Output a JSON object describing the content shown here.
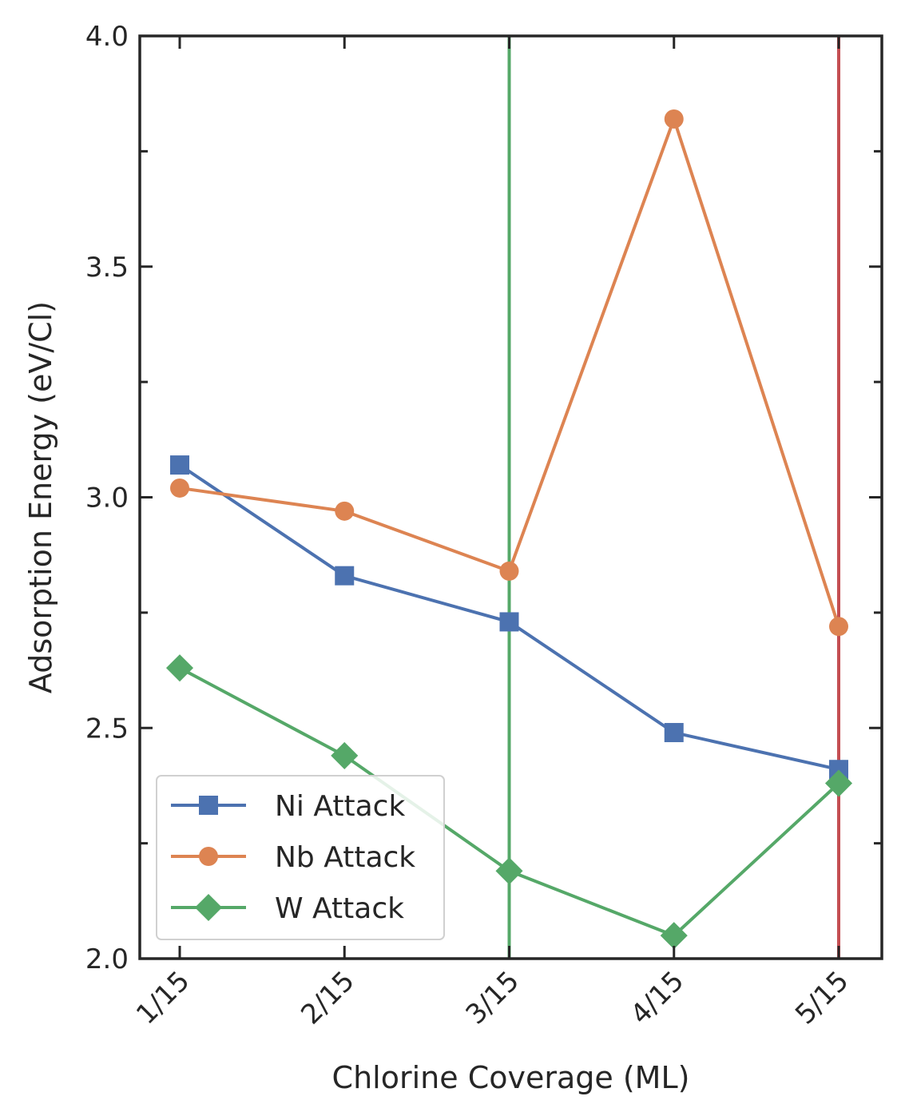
{
  "chart_data": {
    "type": "line",
    "title": "",
    "xlabel": "Chlorine Coverage (ML)",
    "ylabel": "Adsorption Energy (eV/Cl)",
    "categories": [
      "1/15",
      "2/15",
      "3/15",
      "4/15",
      "5/15"
    ],
    "ylim": [
      2.0,
      4.0
    ],
    "yticks": [
      "2.0",
      "2.5",
      "3.0",
      "3.5",
      "4.0"
    ],
    "y_minor_ticks": [
      2.25,
      2.75,
      3.25,
      3.75
    ],
    "grid": false,
    "legend_position": "lower-left",
    "series": [
      {
        "name": "Ni Attack",
        "marker": "square",
        "color": "#4c72b0",
        "values": [
          3.07,
          2.83,
          2.73,
          2.49,
          2.41
        ]
      },
      {
        "name": "Nb Attack",
        "marker": "circle",
        "color": "#dd8452",
        "values": [
          3.02,
          2.97,
          2.84,
          3.82,
          2.72
        ]
      },
      {
        "name": "W Attack",
        "marker": "diamond",
        "color": "#55a868",
        "values": [
          2.63,
          2.44,
          2.19,
          2.05,
          2.38
        ]
      }
    ],
    "vertical_lines": [
      {
        "x_category": "3/15",
        "color": "#55a868"
      },
      {
        "x_category": "5/15",
        "color": "#c44e52"
      }
    ]
  }
}
